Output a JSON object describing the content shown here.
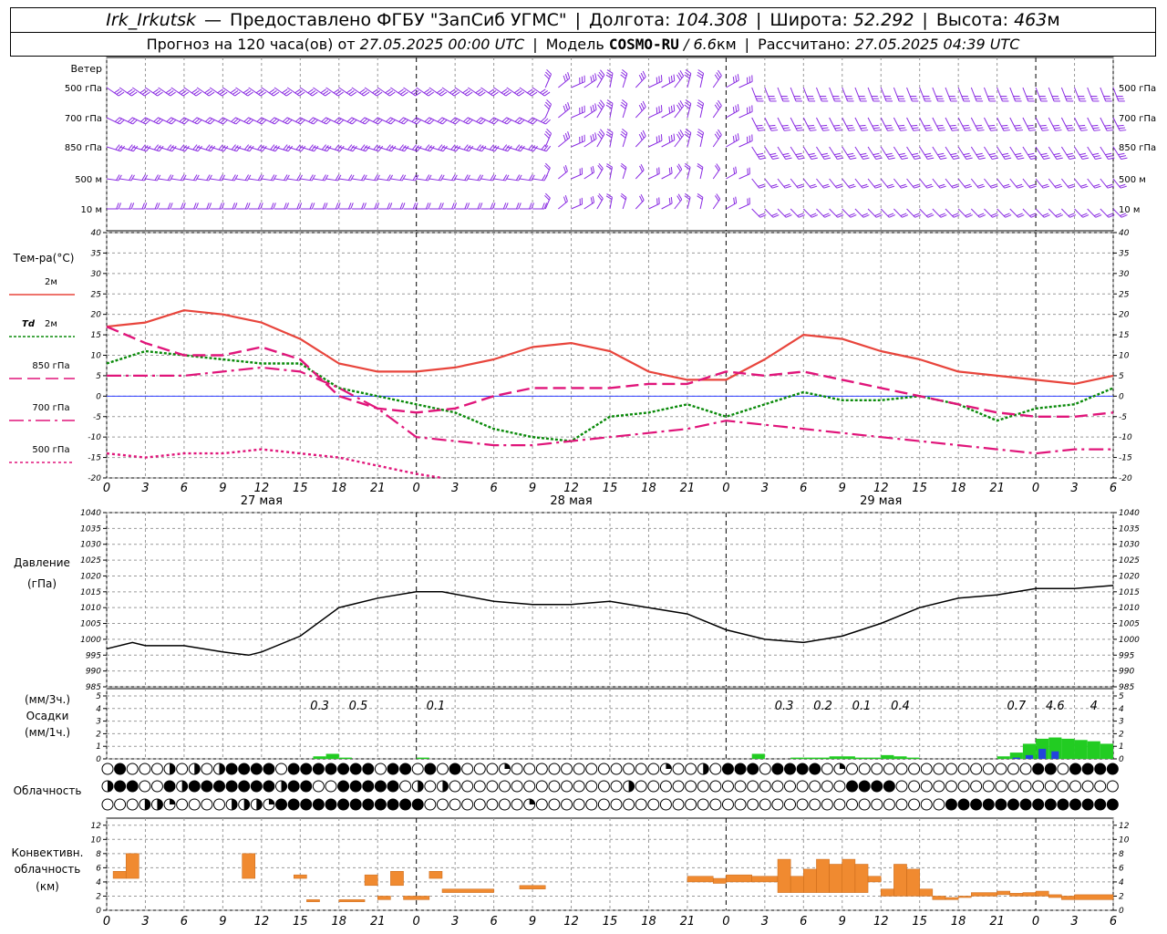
{
  "header": {
    "station": "Irk_Irkutsk",
    "dash": "—",
    "provider": "Предоставлено ФГБУ \"ЗапСиб УГМС\"",
    "lon_label": "Долгота:",
    "lon_value": "104.308",
    "lat_label": "Широта:",
    "lat_value": "52.292",
    "alt_label": "Высота:",
    "alt_value": "463",
    "alt_unit": "м",
    "forecast_label": "Прогноз на 120 часа(ов) от",
    "forecast_time": "27.05.2025 00:00 UTC",
    "model_label": "Модель",
    "model_name": "COSMO-RU",
    "model_res": "/ 6.6",
    "model_res_unit": "км",
    "calc_label": "Рассчитано:",
    "calc_time": "27.05.2025 04:39 UTC"
  },
  "colors": {
    "t2m": "#e8453c",
    "td2m": "#0a8a0a",
    "t850": "#e0157a",
    "t700": "#e0157a",
    "t500": "#e0157a",
    "wind": "#8a2be2",
    "zero": "#3040ff",
    "pressure": "#000000",
    "rain": "#22cc22",
    "rain_heavy": "#2244dd",
    "conv": "#f08a30",
    "grid": "#999999"
  },
  "chart_data": [
    {
      "type": "wind-barbs",
      "title": "Ветер",
      "levels": [
        "500 гПа",
        "700 гПа",
        "850 гПа",
        "500 м",
        "10 м"
      ]
    },
    {
      "type": "line",
      "title": "Тем-ра(°C)",
      "ylim": [
        -20,
        40
      ],
      "yticks": [
        -20,
        -15,
        -10,
        -5,
        0,
        5,
        10,
        15,
        20,
        25,
        30,
        35,
        40
      ],
      "x_ticks": [
        "0",
        "3",
        "6",
        "9",
        "12",
        "15",
        "18",
        "21",
        "0",
        "3",
        "6",
        "9",
        "12",
        "15",
        "18",
        "21",
        "0",
        "3",
        "6",
        "9",
        "12",
        "15",
        "18",
        "21",
        "0",
        "3",
        "6"
      ],
      "day_labels": [
        "27 мая",
        "28 мая",
        "29 мая"
      ],
      "legend": [
        {
          "key": "t2m",
          "label": "2м"
        },
        {
          "key": "td2m",
          "label_prefix": "Td",
          "label": "2м"
        },
        {
          "key": "t850",
          "label": "850 гПа"
        },
        {
          "key": "t700",
          "label": "700 гПа"
        },
        {
          "key": "t500",
          "label": "500 гПа"
        }
      ],
      "series": [
        {
          "key": "t2m",
          "x": [
            0,
            3,
            6,
            9,
            12,
            15,
            18,
            21,
            24,
            27,
            30,
            33,
            36,
            39,
            42,
            45,
            48,
            51,
            54,
            57,
            60,
            63,
            66,
            69,
            72,
            75,
            78
          ],
          "values": [
            17,
            18,
            21,
            20,
            18,
            14,
            8,
            6,
            6,
            7,
            9,
            12,
            13,
            11,
            6,
            4,
            4,
            9,
            15,
            14,
            11,
            9,
            6,
            5,
            4,
            3,
            5
          ]
        },
        {
          "key": "td2m",
          "x": [
            0,
            3,
            6,
            9,
            12,
            15,
            18,
            21,
            24,
            27,
            30,
            33,
            36,
            39,
            42,
            45,
            48,
            51,
            54,
            57,
            60,
            63,
            66,
            69,
            72,
            75,
            78
          ],
          "values": [
            8,
            11,
            10,
            9,
            8,
            8,
            2,
            0,
            -2,
            -4,
            -8,
            -10,
            -11,
            -5,
            -4,
            -2,
            -5,
            -2,
            1,
            -1,
            -1,
            0,
            -2,
            -6,
            -3,
            -2,
            2
          ]
        },
        {
          "key": "t850",
          "x": [
            0,
            3,
            6,
            9,
            12,
            15,
            18,
            21,
            24,
            27,
            30,
            33,
            36,
            39,
            42,
            45,
            48,
            51,
            54,
            57,
            60,
            63,
            66,
            69,
            72,
            75,
            78
          ],
          "values": [
            17,
            13,
            10,
            10,
            12,
            9,
            0,
            -3,
            -4,
            -3,
            0,
            2,
            2,
            2,
            3,
            3,
            6,
            5,
            6,
            4,
            2,
            0,
            -2,
            -4,
            -5,
            -5,
            -4
          ]
        },
        {
          "key": "t700",
          "x": [
            0,
            3,
            6,
            9,
            12,
            15,
            18,
            21,
            24,
            27,
            30,
            33,
            36,
            39,
            42,
            45,
            48,
            51,
            54,
            57,
            60,
            63,
            66,
            69,
            72,
            75,
            78
          ],
          "values": [
            5,
            5,
            5,
            6,
            7,
            6,
            2,
            -3,
            -10,
            -11,
            -12,
            -12,
            -11,
            -10,
            -9,
            -8,
            -6,
            -7,
            -8,
            -9,
            -10,
            -11,
            -12,
            -13,
            -14,
            -13,
            -13
          ]
        },
        {
          "key": "t500",
          "x": [
            0,
            3,
            6,
            9,
            12,
            15,
            18,
            21,
            24,
            26
          ],
          "values": [
            -14,
            -15,
            -14,
            -14,
            -13,
            -14,
            -15,
            -17,
            -19,
            -20
          ]
        }
      ]
    },
    {
      "type": "line",
      "title": "Давление",
      "ylabel": "(гПа)",
      "ylim": [
        985,
        1040
      ],
      "yticks": [
        985,
        990,
        995,
        1000,
        1005,
        1010,
        1015,
        1020,
        1025,
        1030,
        1035,
        1040
      ],
      "series": [
        {
          "key": "pressure",
          "x": [
            0,
            2,
            3,
            6,
            9,
            11,
            12,
            15,
            18,
            21,
            24,
            26,
            30,
            33,
            36,
            39,
            42,
            45,
            48,
            51,
            54,
            57,
            60,
            63,
            66,
            69,
            72,
            75,
            78
          ],
          "values": [
            997,
            999,
            998,
            998,
            996,
            995,
            996,
            1001,
            1010,
            1013,
            1015,
            1015,
            1012,
            1011,
            1011,
            1012,
            1010,
            1008,
            1003,
            1000,
            999,
            1001,
            1005,
            1010,
            1013,
            1014,
            1016,
            1016,
            1017
          ]
        }
      ]
    },
    {
      "type": "bar",
      "title": "Осадки",
      "ylabel_top": "(мм/3ч.)",
      "ylabel_bottom": "(мм/1ч.)",
      "ylim": [
        0,
        5
      ],
      "yticks": [
        0,
        1,
        2,
        3,
        4,
        5
      ],
      "totals": [
        {
          "x": 16.5,
          "text": "0.3"
        },
        {
          "x": 19.5,
          "text": "0.5"
        },
        {
          "x": 25.5,
          "text": "0.1"
        },
        {
          "x": 52.5,
          "text": "0.3"
        },
        {
          "x": 55.5,
          "text": "0.2"
        },
        {
          "x": 58.5,
          "text": "0.1"
        },
        {
          "x": 61.5,
          "text": "0.4"
        },
        {
          "x": 70.5,
          "text": "0.7"
        },
        {
          "x": 73.5,
          "text": "4.6"
        },
        {
          "x": 76.5,
          "text": "4"
        }
      ],
      "x": [
        17,
        18,
        19,
        25,
        51,
        54,
        55,
        56,
        57,
        58,
        59,
        60,
        61,
        62,
        63,
        70,
        71,
        72,
        73,
        74,
        75,
        76,
        77,
        78
      ],
      "values": [
        0.2,
        0.4,
        0.1,
        0.1,
        0.4,
        0.1,
        0.1,
        0.1,
        0.2,
        0.2,
        0.1,
        0.1,
        0.3,
        0.2,
        0.1,
        0.2,
        0.5,
        1.2,
        1.6,
        1.7,
        1.6,
        1.5,
        1.4,
        1.2
      ],
      "heavy_values": [
        0,
        0,
        0,
        0,
        0,
        0,
        0,
        0,
        0,
        0,
        0,
        0,
        0,
        0,
        0,
        0,
        0.1,
        0.3,
        0.8,
        0.6,
        0,
        0,
        0,
        0
      ]
    },
    {
      "type": "symbol-grid",
      "title": "Облачность",
      "rows": [
        "0100020202111101111111011010100030000000000003002011101111030000000000000001101111",
        "2110012111111121100111110202000000000000002000000000000000001111000000000000000000",
        "0002230000222311111111111100000000300000000000000000000000000000000011111111111111"
      ]
    },
    {
      "type": "bar",
      "title": "Конвективн. облачность (км)",
      "ylim": [
        0,
        13
      ],
      "yticks": [
        0,
        2,
        4,
        6,
        8,
        10,
        12
      ],
      "segments": [
        {
          "x0": 0.5,
          "x1": 1.5,
          "lo": 4.5,
          "hi": 5.5
        },
        {
          "x0": 1.5,
          "x1": 2.5,
          "lo": 4.5,
          "hi": 8.0
        },
        {
          "x0": 10.5,
          "x1": 11.5,
          "lo": 4.5,
          "hi": 8.0
        },
        {
          "x0": 14.5,
          "x1": 15.5,
          "lo": 4.5,
          "hi": 5.0
        },
        {
          "x0": 15.5,
          "x1": 16.5,
          "lo": 1.2,
          "hi": 1.5
        },
        {
          "x0": 18,
          "x1": 20,
          "lo": 1.2,
          "hi": 1.5
        },
        {
          "x0": 20,
          "x1": 21,
          "lo": 3.5,
          "hi": 5.0
        },
        {
          "x0": 21,
          "x1": 22,
          "lo": 1.5,
          "hi": 2.0
        },
        {
          "x0": 22,
          "x1": 23,
          "lo": 3.5,
          "hi": 5.5
        },
        {
          "x0": 23,
          "x1": 25,
          "lo": 1.5,
          "hi": 2.0
        },
        {
          "x0": 25,
          "x1": 26,
          "lo": 4.5,
          "hi": 5.5
        },
        {
          "x0": 26,
          "x1": 30,
          "lo": 2.5,
          "hi": 3.0
        },
        {
          "x0": 32,
          "x1": 34,
          "lo": 3.0,
          "hi": 3.5
        },
        {
          "x0": 45,
          "x1": 47,
          "lo": 4.0,
          "hi": 4.8
        },
        {
          "x0": 47,
          "x1": 48,
          "lo": 3.8,
          "hi": 4.5
        },
        {
          "x0": 48,
          "x1": 50,
          "lo": 4.0,
          "hi": 5.0
        },
        {
          "x0": 50,
          "x1": 52,
          "lo": 4.0,
          "hi": 4.8
        },
        {
          "x0": 52,
          "x1": 53,
          "lo": 2.5,
          "hi": 7.2
        },
        {
          "x0": 53,
          "x1": 54,
          "lo": 2.5,
          "hi": 4.8
        },
        {
          "x0": 54,
          "x1": 55,
          "lo": 2.5,
          "hi": 5.8
        },
        {
          "x0": 55,
          "x1": 56,
          "lo": 2.5,
          "hi": 7.2
        },
        {
          "x0": 56,
          "x1": 57,
          "lo": 2.5,
          "hi": 6.5
        },
        {
          "x0": 57,
          "x1": 58,
          "lo": 2.5,
          "hi": 7.2
        },
        {
          "x0": 58,
          "x1": 59,
          "lo": 2.5,
          "hi": 6.5
        },
        {
          "x0": 59,
          "x1": 60,
          "lo": 4.0,
          "hi": 4.8
        },
        {
          "x0": 60,
          "x1": 61,
          "lo": 2.0,
          "hi": 3.0
        },
        {
          "x0": 61,
          "x1": 62,
          "lo": 2.0,
          "hi": 6.5
        },
        {
          "x0": 62,
          "x1": 63,
          "lo": 2.0,
          "hi": 5.8
        },
        {
          "x0": 63,
          "x1": 64,
          "lo": 2.0,
          "hi": 3.0
        },
        {
          "x0": 64,
          "x1": 65,
          "lo": 1.5,
          "hi": 2.0
        },
        {
          "x0": 65,
          "x1": 66,
          "lo": 1.5,
          "hi": 1.8
        },
        {
          "x0": 66,
          "x1": 67,
          "lo": 1.8,
          "hi": 2.0
        },
        {
          "x0": 67,
          "x1": 69,
          "lo": 2.0,
          "hi": 2.5
        },
        {
          "x0": 69,
          "x1": 70,
          "lo": 2.2,
          "hi": 2.7
        },
        {
          "x0": 70,
          "x1": 71,
          "lo": 2.0,
          "hi": 2.4
        },
        {
          "x0": 71,
          "x1": 72,
          "lo": 2.0,
          "hi": 2.5
        },
        {
          "x0": 72,
          "x1": 73,
          "lo": 2.0,
          "hi": 2.7
        },
        {
          "x0": 73,
          "x1": 74,
          "lo": 1.8,
          "hi": 2.2
        },
        {
          "x0": 74,
          "x1": 75,
          "lo": 1.5,
          "hi": 2.0
        },
        {
          "x0": 75,
          "x1": 78,
          "lo": 1.5,
          "hi": 2.2
        }
      ]
    }
  ]
}
